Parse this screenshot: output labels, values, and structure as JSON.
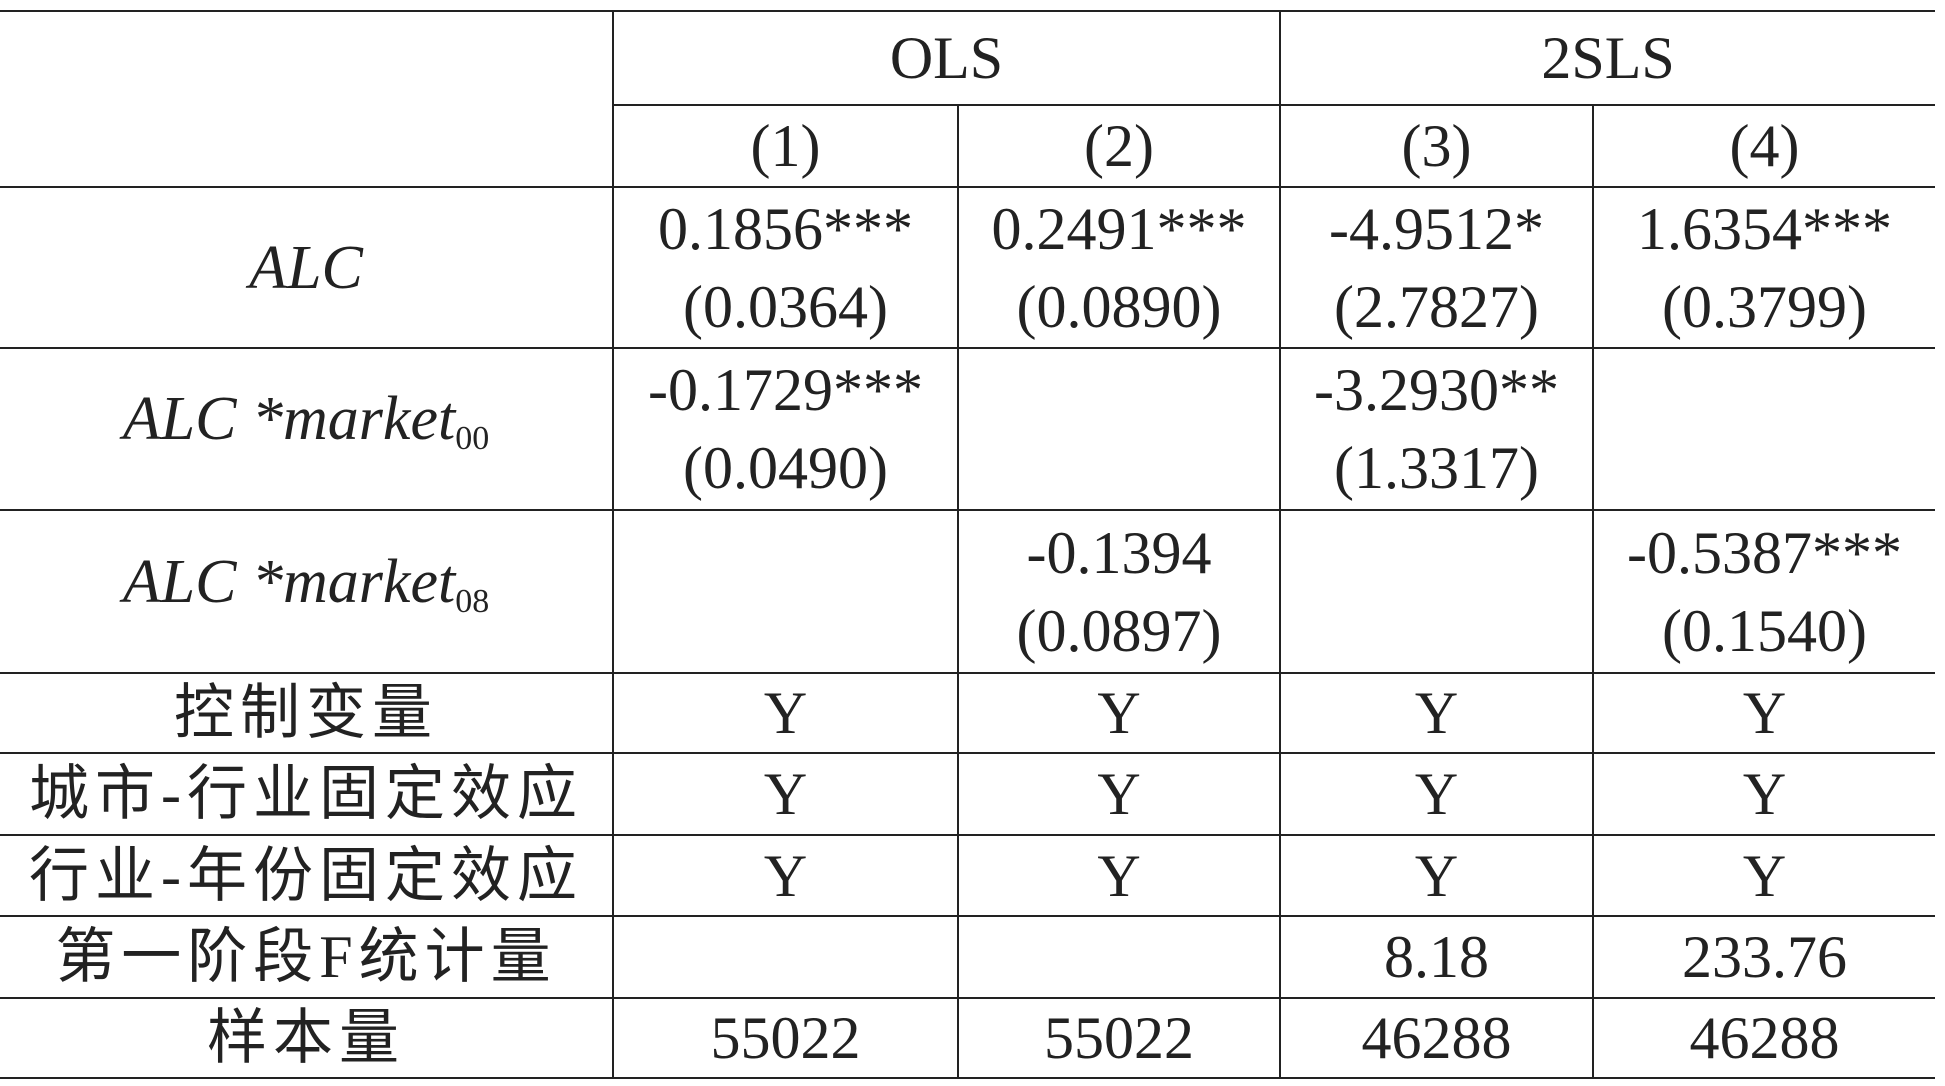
{
  "table": {
    "groups": [
      "OLS",
      "2SLS"
    ],
    "columns": [
      "(1)",
      "(2)",
      "(3)",
      "(4)"
    ],
    "rows": [
      {
        "label": "ALC",
        "italic": true,
        "cells": [
          [
            "0.1856***",
            "(0.0364)"
          ],
          [
            "0.2491***",
            "(0.0890)"
          ],
          [
            "-4.9512*",
            "(2.7827)"
          ],
          [
            "1.6354***",
            "(0.3799)"
          ]
        ]
      },
      {
        "label": "ALC *market",
        "sub": "00",
        "italic": true,
        "cells": [
          [
            "-0.1729***",
            "(0.0490)"
          ],
          null,
          [
            "-3.2930**",
            "(1.3317)"
          ],
          null
        ]
      },
      {
        "label": "ALC *market",
        "sub": "08",
        "italic": true,
        "cells": [
          null,
          [
            "-0.1394",
            "(0.0897)"
          ],
          null,
          [
            "-0.5387***",
            "(0.1540)"
          ]
        ]
      },
      {
        "label": "控制变量",
        "cells": [
          [
            "Y"
          ],
          [
            "Y"
          ],
          [
            "Y"
          ],
          [
            "Y"
          ]
        ]
      },
      {
        "label": "城市-行业固定效应",
        "cells": [
          [
            "Y"
          ],
          [
            "Y"
          ],
          [
            "Y"
          ],
          [
            "Y"
          ]
        ]
      },
      {
        "label": "行业-年份固定效应",
        "cells": [
          [
            "Y"
          ],
          [
            "Y"
          ],
          [
            "Y"
          ],
          [
            "Y"
          ]
        ]
      },
      {
        "label": "第一阶段F统计量",
        "cells": [
          null,
          null,
          [
            "8.18"
          ],
          [
            "233.76"
          ]
        ]
      },
      {
        "label": "样本量",
        "cells": [
          [
            "55022"
          ],
          [
            "55022"
          ],
          [
            "46288"
          ],
          [
            "46288"
          ]
        ]
      }
    ]
  }
}
